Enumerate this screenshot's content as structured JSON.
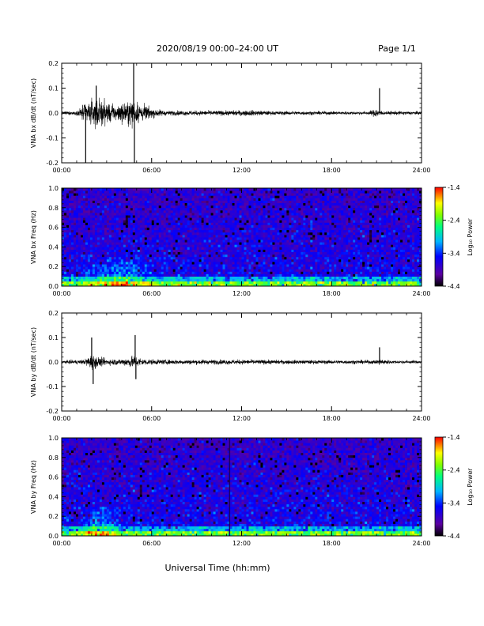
{
  "header": {
    "title": "2020/08/19  00:00–24:00 UT",
    "page": "Page 1/1"
  },
  "footer": {
    "xlabel": "Universal Time (hh:mm)"
  },
  "colorbar": {
    "label": "Log₁₀ Power",
    "ticks": [
      "-1.4",
      "-2.4",
      "-3.4",
      "-4.4"
    ]
  },
  "chart_data": [
    {
      "type": "line",
      "panel": "bx-waveform",
      "ylabel": "VNA bx dB/dt (nT/sec)",
      "xlim_hours": [
        0,
        24
      ],
      "ylim": [
        -0.2,
        0.2
      ],
      "xticks": [
        "00:00",
        "06:00",
        "12:00",
        "18:00",
        "24:00"
      ],
      "yticks": [
        "0.2",
        "0.1",
        "0.0",
        "-0.1",
        "-0.2"
      ],
      "envelope": {
        "x_hours": [
          0,
          1.0,
          1.5,
          2.0,
          2.5,
          3.0,
          3.5,
          4.0,
          4.7,
          5.0,
          5.5,
          6.0,
          7.0,
          9.0,
          11.0,
          12.5,
          14.0,
          16.0,
          18.0,
          20.5,
          21.0,
          21.5,
          22.5,
          24.0
        ],
        "amplitude": [
          0.01,
          0.012,
          0.06,
          0.08,
          0.09,
          0.07,
          0.05,
          0.06,
          0.08,
          0.07,
          0.05,
          0.03,
          0.015,
          0.015,
          0.015,
          0.018,
          0.012,
          0.012,
          0.01,
          0.01,
          0.03,
          0.01,
          0.012,
          0.01
        ]
      },
      "spikes": [
        {
          "x_hours": 1.6,
          "y": -0.2
        },
        {
          "x_hours": 2.3,
          "y": 0.11
        },
        {
          "x_hours": 4.8,
          "y": 0.2
        },
        {
          "x_hours": 4.85,
          "y": -0.2
        },
        {
          "x_hours": 21.2,
          "y": 0.1
        }
      ]
    },
    {
      "type": "heatmap",
      "panel": "bx-spectrogram",
      "ylabel": "VNA bx Freq (Hz)",
      "xlim_hours": [
        0,
        24
      ],
      "ylim": [
        0.0,
        1.0
      ],
      "zlim": [
        -4.4,
        -1.4
      ],
      "xticks": [
        "00:00",
        "06:00",
        "12:00",
        "18:00",
        "24:00"
      ],
      "yticks": [
        "1.0",
        "0.8",
        "0.6",
        "0.4",
        "0.2",
        "0.0"
      ],
      "activity_hours": [
        1.0,
        6.5
      ]
    },
    {
      "type": "line",
      "panel": "by-waveform",
      "ylabel": "VNA by dB/dt (nT/sec)",
      "xlim_hours": [
        0,
        24
      ],
      "ylim": [
        -0.2,
        0.2
      ],
      "xticks": [
        "00:00",
        "06:00",
        "12:00",
        "18:00",
        "24:00"
      ],
      "yticks": [
        "0.2",
        "0.1",
        "0.0",
        "-0.1",
        "-0.2"
      ],
      "envelope": {
        "x_hours": [
          0,
          1.5,
          2.0,
          2.5,
          3.0,
          4.0,
          4.8,
          5.5,
          6.5,
          9.0,
          12.0,
          15.0,
          18.0,
          21.0,
          21.3,
          22.0,
          24.0
        ],
        "amplitude": [
          0.01,
          0.015,
          0.05,
          0.03,
          0.02,
          0.02,
          0.04,
          0.02,
          0.015,
          0.015,
          0.015,
          0.013,
          0.012,
          0.012,
          0.02,
          0.01,
          0.01
        ]
      },
      "spikes": [
        {
          "x_hours": 2.0,
          "y": 0.1
        },
        {
          "x_hours": 2.1,
          "y": -0.09
        },
        {
          "x_hours": 4.9,
          "y": 0.11
        },
        {
          "x_hours": 4.95,
          "y": -0.07
        },
        {
          "x_hours": 21.2,
          "y": 0.06
        }
      ]
    },
    {
      "type": "heatmap",
      "panel": "by-spectrogram",
      "ylabel": "VNA by Freq (Hz)",
      "xlim_hours": [
        0,
        24
      ],
      "ylim": [
        0.0,
        1.0
      ],
      "zlim": [
        -4.4,
        -1.4
      ],
      "xticks": [
        "00:00",
        "06:00",
        "12:00",
        "18:00",
        "24:00"
      ],
      "yticks": [
        "1.0",
        "0.8",
        "0.6",
        "0.4",
        "0.2",
        "0.0"
      ],
      "activity_hours": [
        1.0,
        4.0
      ],
      "dark_line_hour": 11.2
    }
  ]
}
